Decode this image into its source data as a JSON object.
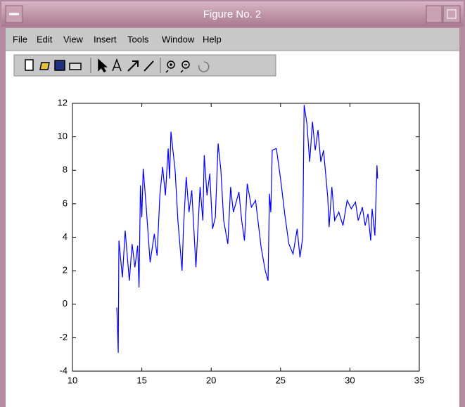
{
  "window": {
    "title": "Figure No. 2",
    "menu": [
      "File",
      "Edit",
      "View",
      "Insert",
      "Tools",
      "Window",
      "Help"
    ]
  },
  "chart_data": {
    "type": "line",
    "color": "#0000ff",
    "x": [
      13.2,
      13.3,
      13.35,
      13.6,
      13.8,
      14.1,
      14.3,
      14.5,
      14.7,
      14.8,
      14.9,
      15.0,
      15.1,
      15.3,
      15.6,
      15.9,
      16.1,
      16.3,
      16.5,
      16.7,
      16.9,
      17.0,
      17.1,
      17.4,
      17.6,
      17.9,
      18.0,
      18.2,
      18.4,
      18.6,
      18.9,
      19.2,
      19.4,
      19.5,
      19.7,
      19.9,
      20.1,
      20.3,
      20.5,
      20.7,
      20.9,
      21.2,
      21.4,
      21.6,
      22.0,
      22.2,
      22.4,
      22.6,
      22.9,
      23.2,
      23.6,
      23.9,
      24.1,
      24.2,
      24.3,
      24.4,
      24.7,
      25.0,
      25.3,
      25.6,
      25.9,
      26.2,
      26.4,
      26.6,
      26.7,
      26.9,
      27.1,
      27.3,
      27.5,
      27.7,
      27.9,
      28.1,
      28.4,
      28.5,
      28.7,
      28.9,
      29.2,
      29.5,
      29.8,
      30.1,
      30.4,
      30.6,
      30.9,
      31.1,
      31.3,
      31.5,
      31.6,
      31.8,
      31.95,
      32.0
    ],
    "values": [
      -0.2,
      -2.9,
      3.8,
      1.6,
      4.4,
      1.4,
      3.6,
      2.2,
      3.5,
      1.0,
      7.1,
      5.2,
      8.1,
      6.0,
      2.5,
      4.2,
      2.9,
      6.5,
      8.2,
      6.5,
      9.3,
      7.5,
      10.3,
      8.0,
      5.0,
      2.0,
      4.5,
      7.6,
      5.5,
      6.8,
      2.2,
      7.0,
      5.0,
      8.9,
      6.5,
      7.8,
      4.5,
      5.2,
      9.6,
      8.0,
      5.0,
      3.6,
      7.0,
      5.5,
      6.7,
      5.0,
      3.8,
      7.2,
      5.8,
      6.2,
      3.4,
      2.0,
      1.4,
      6.6,
      5.5,
      9.2,
      9.3,
      7.5,
      5.4,
      3.6,
      3.0,
      4.5,
      2.8,
      4.0,
      11.9,
      10.8,
      8.5,
      10.9,
      9.2,
      10.4,
      8.5,
      9.2,
      6.4,
      4.6,
      7.0,
      5.0,
      5.5,
      4.7,
      6.2,
      5.7,
      6.1,
      5.0,
      5.8,
      4.7,
      5.4,
      3.8,
      5.7,
      4.1,
      8.3,
      7.5
    ],
    "xlim": [
      10,
      35
    ],
    "xticks": [
      10,
      15,
      20,
      25,
      30,
      35
    ],
    "ylim": [
      -4,
      12
    ],
    "yticks": [
      -4,
      -2,
      0,
      2,
      4,
      6,
      8,
      10,
      12
    ]
  }
}
